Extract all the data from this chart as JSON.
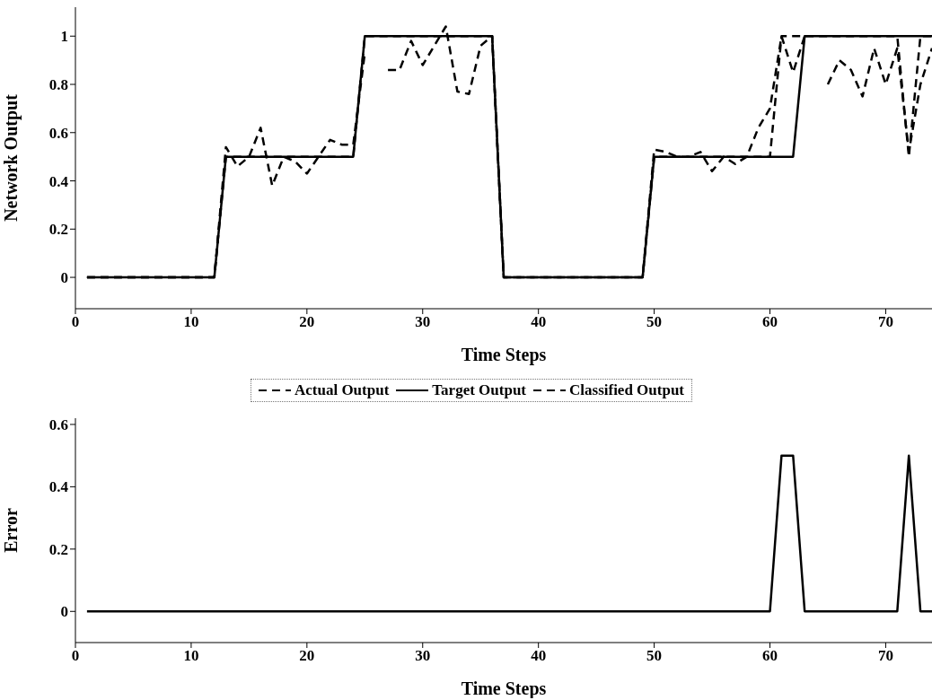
{
  "chart_data": [
    {
      "type": "line",
      "ylabel": "Network Output",
      "xlabel": "Time Steps",
      "x": [
        1,
        2,
        3,
        4,
        5,
        6,
        7,
        8,
        9,
        10,
        11,
        12,
        13,
        14,
        15,
        16,
        17,
        18,
        19,
        20,
        21,
        22,
        23,
        24,
        25,
        26,
        27,
        28,
        29,
        30,
        31,
        32,
        33,
        34,
        35,
        36,
        37,
        38,
        39,
        40,
        41,
        42,
        43,
        44,
        45,
        46,
        47,
        48,
        49,
        50,
        51,
        52,
        53,
        54,
        55,
        56,
        57,
        58,
        59,
        60,
        61,
        62,
        63,
        64,
        65,
        66,
        67,
        68,
        69,
        70,
        71,
        72,
        73,
        74
      ],
      "series": [
        {
          "name": "Actual Output",
          "color": "#000000",
          "line_style": "dashed",
          "values": [
            0,
            0,
            0,
            0,
            0,
            0,
            0,
            0,
            0,
            0,
            0,
            0,
            0.54,
            0.46,
            0.5,
            0.62,
            0.38,
            0.5,
            0.48,
            0.43,
            0.5,
            0.57,
            0.55,
            0.55,
            0.93,
            null,
            0.86,
            0.86,
            0.98,
            0.88,
            0.96,
            1.04,
            0.77,
            0.76,
            0.96,
            1,
            0,
            0,
            0,
            0,
            0,
            0,
            0,
            0,
            0,
            0,
            0,
            0,
            0,
            0.53,
            0.52,
            0.5,
            0.5,
            0.52,
            0.44,
            0.5,
            0.47,
            0.5,
            0.62,
            0.7,
            1,
            0.85,
            1,
            null,
            0.8,
            0.9,
            0.86,
            0.75,
            0.95,
            0.8,
            0.95,
            0.52,
            0.8,
            0.95
          ]
        },
        {
          "name": "Target Output",
          "color": "#000000",
          "line_style": "solid",
          "values": [
            0,
            0,
            0,
            0,
            0,
            0,
            0,
            0,
            0,
            0,
            0,
            0,
            0.5,
            0.5,
            0.5,
            0.5,
            0.5,
            0.5,
            0.5,
            0.5,
            0.5,
            0.5,
            0.5,
            0.5,
            1,
            1,
            1,
            1,
            1,
            1,
            1,
            1,
            1,
            1,
            1,
            1,
            0,
            0,
            0,
            0,
            0,
            0,
            0,
            0,
            0,
            0,
            0,
            0,
            0,
            0.5,
            0.5,
            0.5,
            0.5,
            0.5,
            0.5,
            0.5,
            0.5,
            0.5,
            0.5,
            0.5,
            0.5,
            0.5,
            1,
            1,
            1,
            1,
            1,
            1,
            1,
            1,
            1,
            1,
            1,
            1
          ]
        },
        {
          "name": "Classified Output",
          "color": "#000000",
          "line_style": "dashed",
          "values": [
            0,
            0,
            0,
            0,
            0,
            0,
            0,
            0,
            0,
            0,
            0,
            0,
            0.5,
            0.5,
            0.5,
            0.5,
            0.5,
            0.5,
            0.5,
            0.5,
            0.5,
            0.5,
            0.5,
            0.5,
            1,
            1,
            1,
            1,
            1,
            1,
            1,
            1,
            1,
            1,
            1,
            1,
            0,
            0,
            0,
            0,
            0,
            0,
            0,
            0,
            0,
            0,
            0,
            0,
            0,
            0.5,
            0.5,
            0.5,
            0.5,
            0.5,
            0.5,
            0.5,
            0.5,
            0.5,
            0.5,
            0.5,
            1,
            1,
            1,
            1,
            1,
            1,
            1,
            1,
            1,
            1,
            1,
            0.5,
            1,
            1
          ]
        }
      ],
      "xlim": [
        0,
        74
      ],
      "xticks": [
        0,
        10,
        20,
        30,
        40,
        50,
        60,
        70
      ],
      "ylim": [
        -0.13,
        1.12
      ],
      "yticks": [
        0,
        0.2,
        0.4,
        0.6,
        0.8,
        1
      ],
      "legend": "bottom",
      "marker": "none"
    },
    {
      "type": "line",
      "ylabel": "Error",
      "xlabel": "Time Steps",
      "x": [
        1,
        2,
        3,
        4,
        5,
        6,
        7,
        8,
        9,
        10,
        11,
        12,
        13,
        14,
        15,
        16,
        17,
        18,
        19,
        20,
        21,
        22,
        23,
        24,
        25,
        26,
        27,
        28,
        29,
        30,
        31,
        32,
        33,
        34,
        35,
        36,
        37,
        38,
        39,
        40,
        41,
        42,
        43,
        44,
        45,
        46,
        47,
        48,
        49,
        50,
        51,
        52,
        53,
        54,
        55,
        56,
        57,
        58,
        59,
        60,
        61,
        62,
        63,
        64,
        65,
        66,
        67,
        68,
        69,
        70,
        71,
        72,
        73,
        74
      ],
      "series": [
        {
          "color": "#000000",
          "line_style": "solid",
          "values": [
            0,
            0,
            0,
            0,
            0,
            0,
            0,
            0,
            0,
            0,
            0,
            0,
            0,
            0,
            0,
            0,
            0,
            0,
            0,
            0,
            0,
            0,
            0,
            0,
            0,
            0,
            0,
            0,
            0,
            0,
            0,
            0,
            0,
            0,
            0,
            0,
            0,
            0,
            0,
            0,
            0,
            0,
            0,
            0,
            0,
            0,
            0,
            0,
            0,
            0,
            0,
            0,
            0,
            0,
            0,
            0,
            0,
            0,
            0,
            0,
            0.5,
            0.5,
            0,
            0,
            0,
            0,
            0,
            0,
            0,
            0,
            0,
            0.5,
            0,
            0
          ]
        }
      ],
      "xlim": [
        0,
        74
      ],
      "xticks": [
        0,
        10,
        20,
        30,
        40,
        50,
        60,
        70
      ],
      "ylim": [
        -0.1,
        0.62
      ],
      "yticks": [
        0,
        0.2,
        0.4,
        0.6
      ],
      "legend": false,
      "marker": "none"
    }
  ]
}
